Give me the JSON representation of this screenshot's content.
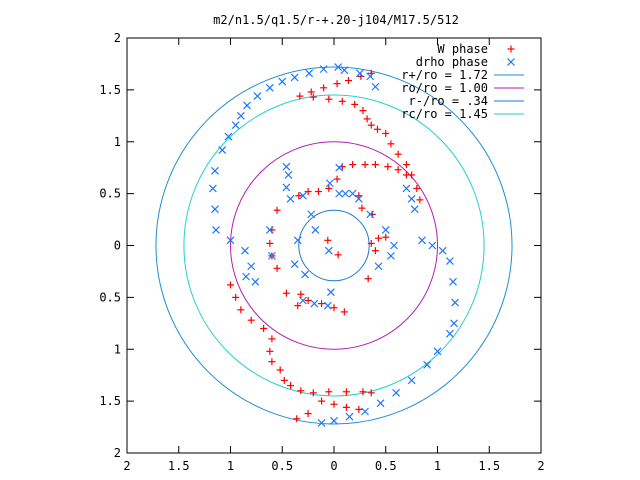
{
  "chart_data": {
    "type": "scatter",
    "title": "m2/n1.5/q1.5/r-+.20-j104/M17.5/512",
    "xlabel": "",
    "ylabel": "",
    "xlim": [
      -2,
      2
    ],
    "ylim": [
      -2,
      2
    ],
    "x_tick_values": [
      -2,
      -1.5,
      -1,
      -0.5,
      0,
      0.5,
      1,
      1.5,
      2
    ],
    "y_tick_values": [
      -2,
      -1.5,
      -1,
      -0.5,
      0,
      0.5,
      1,
      1.5,
      2
    ],
    "x_tick_labels": [
      "2",
      "1.5",
      "1",
      "0.5",
      "0",
      "0.5",
      "1",
      "1.5",
      "2"
    ],
    "y_tick_labels": [
      "2",
      "1.5",
      "1",
      "0.5",
      "0",
      "0.5",
      "1",
      "1.5",
      "2"
    ],
    "grid": false,
    "legend_position": "top-right",
    "series": [
      {
        "name": "W phase",
        "marker": "plus",
        "color": "#ff0000",
        "points": [
          [
            0.36,
            1.66
          ],
          [
            0.26,
            1.63
          ],
          [
            0.14,
            1.59
          ],
          [
            0.03,
            1.56
          ],
          [
            -0.1,
            1.52
          ],
          [
            -0.22,
            1.48
          ],
          [
            -0.33,
            1.44
          ],
          [
            -0.2,
            1.43
          ],
          [
            -0.05,
            1.41
          ],
          [
            0.08,
            1.39
          ],
          [
            0.2,
            1.36
          ],
          [
            0.28,
            1.3
          ],
          [
            0.32,
            1.22
          ],
          [
            0.36,
            1.16
          ],
          [
            0.42,
            1.12
          ],
          [
            0.5,
            1.08
          ],
          [
            0.55,
            0.98
          ],
          [
            0.62,
            0.88
          ],
          [
            0.7,
            0.78
          ],
          [
            0.75,
            0.68
          ],
          [
            0.8,
            0.55
          ],
          [
            0.83,
            0.44
          ],
          [
            0.7,
            0.68
          ],
          [
            0.62,
            0.73
          ],
          [
            0.52,
            0.76
          ],
          [
            0.4,
            0.78
          ],
          [
            0.3,
            0.78
          ],
          [
            0.18,
            0.78
          ],
          [
            0.08,
            0.76
          ],
          [
            0.03,
            0.64
          ],
          [
            -0.05,
            0.55
          ],
          [
            -0.15,
            0.52
          ],
          [
            -0.25,
            0.52
          ],
          [
            0.24,
            0.48
          ],
          [
            0.27,
            0.36
          ],
          [
            0.37,
            0.3
          ],
          [
            0.43,
            0.07
          ],
          [
            0.4,
            -0.05
          ],
          [
            0.36,
            0.02
          ],
          [
            0.5,
            0.08
          ],
          [
            -0.34,
            0.48
          ],
          [
            -0.6,
            0.15
          ],
          [
            -0.62,
            0.02
          ],
          [
            -0.6,
            -0.1
          ],
          [
            -0.55,
            -0.22
          ],
          [
            -0.32,
            -0.47
          ],
          [
            -0.25,
            -0.53
          ],
          [
            -0.12,
            -0.56
          ],
          [
            0.0,
            -0.6
          ],
          [
            0.1,
            -0.64
          ],
          [
            -1.0,
            -0.38
          ],
          [
            -0.95,
            -0.5
          ],
          [
            -0.9,
            -0.62
          ],
          [
            -0.8,
            -0.72
          ],
          [
            -0.68,
            -0.8
          ],
          [
            -0.6,
            -0.9
          ],
          [
            -0.62,
            -1.02
          ],
          [
            -0.6,
            -1.12
          ],
          [
            -0.52,
            -1.2
          ],
          [
            -0.48,
            -1.3
          ],
          [
            -0.42,
            -1.35
          ],
          [
            -0.32,
            -1.4
          ],
          [
            -0.2,
            -1.42
          ],
          [
            -0.05,
            -1.41
          ],
          [
            0.12,
            -1.41
          ],
          [
            0.28,
            -1.41
          ],
          [
            0.36,
            -1.42
          ],
          [
            -0.12,
            -1.5
          ],
          [
            0.0,
            -1.53
          ],
          [
            0.12,
            -1.56
          ],
          [
            0.24,
            -1.58
          ],
          [
            -0.25,
            -1.62
          ],
          [
            -0.36,
            -1.67
          ],
          [
            -0.06,
            0.05
          ],
          [
            0.04,
            -0.09
          ],
          [
            0.33,
            -0.32
          ],
          [
            -0.46,
            -0.46
          ],
          [
            -0.35,
            -0.58
          ],
          [
            -0.55,
            0.34
          ]
        ]
      },
      {
        "name": "drho phase",
        "marker": "cross",
        "color": "#1f77ff",
        "points": [
          [
            0.04,
            1.72
          ],
          [
            -0.1,
            1.7
          ],
          [
            -0.24,
            1.66
          ],
          [
            -0.38,
            1.62
          ],
          [
            -0.5,
            1.58
          ],
          [
            -0.62,
            1.52
          ],
          [
            -0.74,
            1.44
          ],
          [
            -0.84,
            1.35
          ],
          [
            -0.9,
            1.25
          ],
          [
            -0.95,
            1.16
          ],
          [
            -1.02,
            1.05
          ],
          [
            -1.08,
            0.92
          ],
          [
            -1.15,
            0.72
          ],
          [
            -1.17,
            0.55
          ],
          [
            -1.15,
            0.35
          ],
          [
            -1.14,
            0.15
          ],
          [
            -1.0,
            0.05
          ],
          [
            -0.86,
            -0.05
          ],
          [
            -0.8,
            -0.2
          ],
          [
            -0.85,
            -0.3
          ],
          [
            -0.76,
            -0.35
          ],
          [
            -0.6,
            -0.1
          ],
          [
            0.4,
            1.53
          ],
          [
            0.35,
            1.63
          ],
          [
            0.25,
            1.66
          ],
          [
            0.1,
            1.69
          ],
          [
            0.7,
            0.55
          ],
          [
            0.75,
            0.45
          ],
          [
            0.78,
            0.35
          ],
          [
            0.85,
            0.05
          ],
          [
            0.95,
            0.0
          ],
          [
            1.05,
            -0.05
          ],
          [
            1.12,
            -0.15
          ],
          [
            1.15,
            -0.35
          ],
          [
            1.17,
            -0.55
          ],
          [
            1.16,
            -0.75
          ],
          [
            1.12,
            -0.85
          ],
          [
            1.0,
            -1.02
          ],
          [
            0.9,
            -1.15
          ],
          [
            0.75,
            -1.3
          ],
          [
            0.6,
            -1.42
          ],
          [
            0.45,
            -1.52
          ],
          [
            0.3,
            -1.6
          ],
          [
            0.15,
            -1.65
          ],
          [
            0.0,
            -1.69
          ],
          [
            -0.12,
            -1.71
          ],
          [
            -0.46,
            0.76
          ],
          [
            -0.44,
            0.68
          ],
          [
            -0.46,
            0.56
          ],
          [
            -0.42,
            0.45
          ],
          [
            -0.62,
            0.15
          ],
          [
            -0.3,
            0.48
          ],
          [
            -0.04,
            0.6
          ],
          [
            0.05,
            0.75
          ],
          [
            0.05,
            0.5
          ],
          [
            0.11,
            0.5
          ],
          [
            0.18,
            0.5
          ],
          [
            0.24,
            0.45
          ],
          [
            0.35,
            0.3
          ],
          [
            0.5,
            0.15
          ],
          [
            0.58,
            0.0
          ],
          [
            0.55,
            -0.1
          ],
          [
            0.43,
            -0.2
          ],
          [
            -0.03,
            -0.45
          ],
          [
            -0.06,
            -0.58
          ],
          [
            -0.19,
            -0.56
          ],
          [
            -0.3,
            -0.53
          ],
          [
            -0.38,
            -0.18
          ],
          [
            -0.22,
            0.3
          ],
          [
            -0.18,
            0.15
          ],
          [
            -0.05,
            -0.05
          ],
          [
            -0.28,
            -0.28
          ],
          [
            -0.35,
            0.05
          ]
        ]
      },
      {
        "name": "r+/ro = 1.72",
        "type": "circle",
        "radius": 1.72,
        "color": "#1f8fd1"
      },
      {
        "name": "ro/ro = 1.00",
        "type": "circle",
        "radius": 1.0,
        "color": "#b21fb5"
      },
      {
        "name": "r-/ro = .34",
        "type": "circle",
        "radius": 0.34,
        "color": "#1f78d1"
      },
      {
        "name": "rc/ro = 1.45",
        "type": "circle",
        "radius": 1.45,
        "color": "#21cfd6"
      }
    ]
  }
}
